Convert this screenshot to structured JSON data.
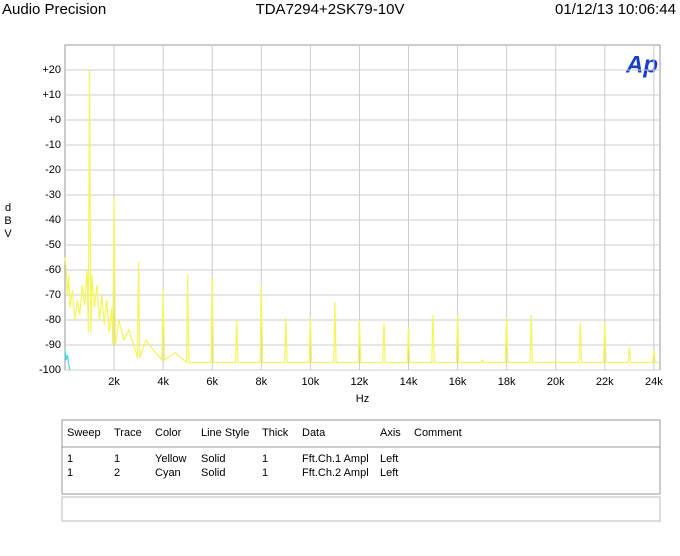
{
  "header": {
    "left": "Audio Precision",
    "center": "TDA7294+2SK79-10V",
    "right": "01/12/13 10:06:44"
  },
  "logo": "Ap",
  "chart_data": {
    "type": "line",
    "ylabel": "dBV",
    "xlabel": "Hz",
    "ylim": [
      -100,
      30
    ],
    "yticks": [
      -100,
      -90,
      -80,
      -70,
      -60,
      -50,
      -40,
      -30,
      -20,
      -10,
      {
        "value": 0,
        "label": "+0"
      },
      {
        "value": 10,
        "label": "+10"
      },
      {
        "value": 20,
        "label": "+20"
      }
    ],
    "xlim": [
      0,
      24250
    ],
    "xticks": [
      {
        "value": 2000,
        "label": "2k"
      },
      {
        "value": 4000,
        "label": "4k"
      },
      {
        "value": 6000,
        "label": "6k"
      },
      {
        "value": 8000,
        "label": "8k"
      },
      {
        "value": 10000,
        "label": "10k"
      },
      {
        "value": 12000,
        "label": "12k"
      },
      {
        "value": 14000,
        "label": "14k"
      },
      {
        "value": 16000,
        "label": "16k"
      },
      {
        "value": 18000,
        "label": "18k"
      },
      {
        "value": 20000,
        "label": "20k"
      },
      {
        "value": 22000,
        "label": "22k"
      },
      {
        "value": 24000,
        "label": "24k"
      }
    ],
    "grid": true,
    "series": [
      {
        "name": "Yellow",
        "color": "#f5f55a",
        "x": [
          0,
          50,
          100,
          150,
          200,
          300,
          400,
          500,
          600,
          700,
          800,
          900,
          950,
          1000,
          1050,
          1100,
          1200,
          1300,
          1400,
          1500,
          1600,
          1700,
          1800,
          1900,
          1950,
          2000,
          2050,
          2200,
          2400,
          2600,
          2800,
          2950,
          3000,
          3050,
          3300,
          3600,
          3950,
          4000,
          4050,
          4500,
          4950,
          5000,
          5050,
          5950,
          6000,
          6050,
          6950,
          7000,
          7050,
          7950,
          8000,
          8050,
          8950,
          9000,
          9050,
          9950,
          10000,
          10050,
          10950,
          11000,
          11050,
          11950,
          12000,
          12050,
          12950,
          13000,
          13050,
          13950,
          14000,
          14050,
          14950,
          15000,
          15050,
          15950,
          16000,
          16050,
          16950,
          17000,
          17050,
          17950,
          18000,
          18050,
          18950,
          19000,
          19050,
          19950,
          20000,
          20050,
          20950,
          21000,
          21050,
          21950,
          22000,
          22050,
          22950,
          23000,
          23050,
          23950,
          24000,
          24050,
          24200
        ],
        "values": [
          -55,
          -60,
          -70,
          -62,
          -75,
          -68,
          -80,
          -72,
          -78,
          -66,
          -74,
          -60,
          -85,
          20,
          -85,
          -62,
          -75,
          -66,
          -80,
          -70,
          -82,
          -72,
          -85,
          -75,
          -90,
          -31,
          -90,
          -80,
          -88,
          -84,
          -90,
          -95,
          -57,
          -95,
          -88,
          -92,
          -96,
          -68,
          -96,
          -93,
          -97,
          -62,
          -97,
          -97,
          -63,
          -97,
          -97,
          -80,
          -97,
          -97,
          -66,
          -97,
          -97,
          -79,
          -97,
          -97,
          -79,
          -97,
          -97,
          -73,
          -97,
          -97,
          -80,
          -97,
          -97,
          -81,
          -97,
          -97,
          -83,
          -97,
          -97,
          -78,
          -97,
          -97,
          -78,
          -97,
          -97,
          -96,
          -97,
          -97,
          -79,
          -97,
          -97,
          -78,
          -97,
          -97,
          -96,
          -97,
          -97,
          -81,
          -97,
          -97,
          -81,
          -97,
          -97,
          -91,
          -97,
          -97,
          -92,
          -97,
          -97
        ]
      },
      {
        "name": "Cyan",
        "color": "#40e0e0",
        "x": [
          0,
          50,
          100,
          150,
          200
        ],
        "values": [
          -92,
          -96,
          -94,
          -98,
          -100
        ]
      }
    ]
  },
  "table": {
    "columns": [
      "Sweep",
      "Trace",
      "Color",
      "Line Style",
      "Thick",
      "Data",
      "Axis",
      "Comment"
    ],
    "rows": [
      [
        "1",
        "1",
        "Yellow",
        "Solid",
        "1",
        "Fft.Ch.1 Ampl",
        "Left"
      ],
      [
        "1",
        "2",
        "Cyan",
        "Solid",
        "1",
        "Fft.Ch.2 Ampl",
        "Left"
      ]
    ]
  }
}
